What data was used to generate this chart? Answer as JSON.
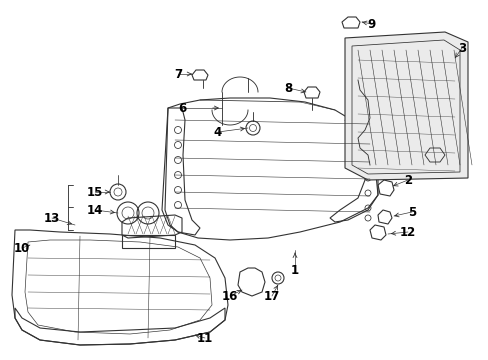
{
  "background_color": "#ffffff",
  "line_color": "#333333",
  "fig_width": 4.89,
  "fig_height": 3.6,
  "dpi": 100,
  "label_fontsize": 8.5
}
